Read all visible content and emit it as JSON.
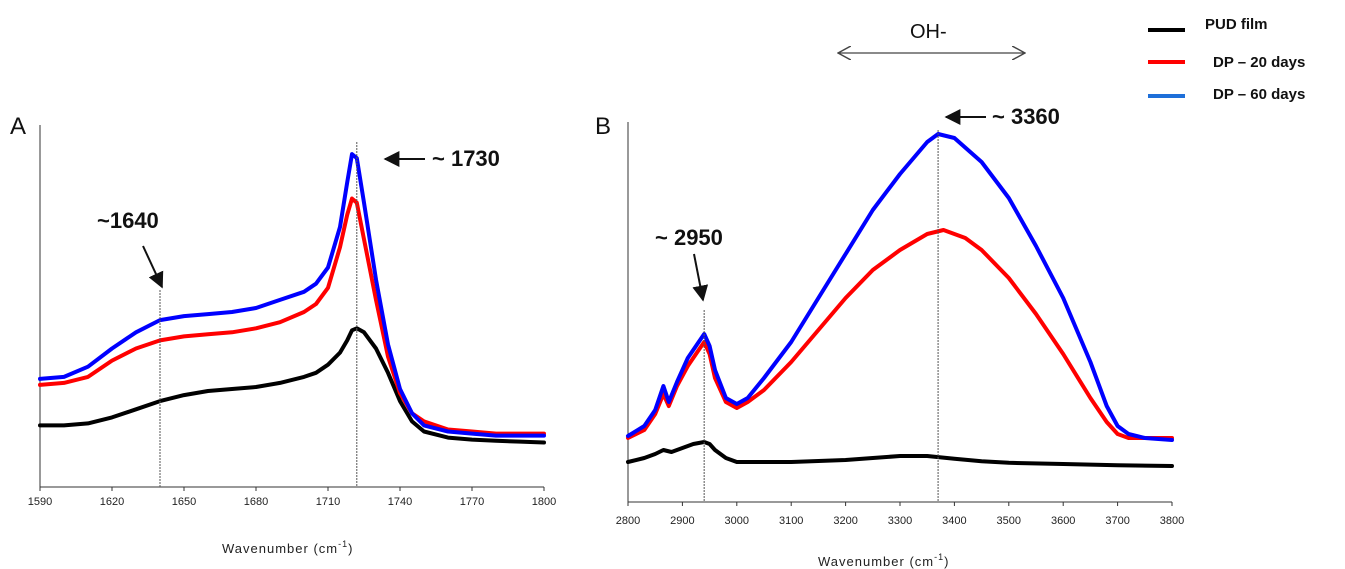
{
  "legend": [
    {
      "label": "PUD film",
      "color": "#000000"
    },
    {
      "label": "DP – 20 days",
      "color": "#ff0000"
    },
    {
      "label": "DP – 60 days",
      "color": "#0000ff"
    }
  ],
  "oh_label": "OH-",
  "chart_data": [
    {
      "type": "line",
      "panel": "A",
      "xlabel_main": "Wavenumber (cm",
      "xlabel_sup": "-1",
      "xlabel_close": ")",
      "xlim": [
        1590,
        1800
      ],
      "xticks": [
        "1590",
        "1620",
        "1650",
        "1680",
        "1710",
        "1740",
        "1770",
        "1800"
      ],
      "y_axis": "no tick labels",
      "annotations": [
        {
          "text": "~1640",
          "x": 1640
        },
        {
          "text": "~ 1730",
          "x": 1722
        }
      ],
      "series": [
        {
          "name": "PUD film",
          "color": "#000000",
          "x": [
            1590,
            1600,
            1610,
            1620,
            1630,
            1640,
            1650,
            1660,
            1670,
            1680,
            1690,
            1700,
            1705,
            1710,
            1715,
            1718,
            1720,
            1722,
            1725,
            1730,
            1735,
            1740,
            1745,
            1750,
            1760,
            1770,
            1780,
            1790,
            1800
          ],
          "y": [
            0.11,
            0.11,
            0.115,
            0.13,
            0.15,
            0.17,
            0.185,
            0.195,
            0.2,
            0.205,
            0.215,
            0.23,
            0.24,
            0.26,
            0.29,
            0.32,
            0.345,
            0.35,
            0.34,
            0.3,
            0.24,
            0.17,
            0.12,
            0.095,
            0.08,
            0.075,
            0.072,
            0.07,
            0.068
          ]
        },
        {
          "name": "DP – 20 days",
          "color": "#ff0000",
          "x": [
            1590,
            1600,
            1610,
            1620,
            1630,
            1640,
            1650,
            1660,
            1670,
            1680,
            1690,
            1700,
            1705,
            1710,
            1715,
            1718,
            1720,
            1722,
            1725,
            1730,
            1735,
            1740,
            1745,
            1750,
            1760,
            1770,
            1780,
            1790,
            1800
          ],
          "y": [
            0.21,
            0.215,
            0.23,
            0.27,
            0.3,
            0.32,
            0.33,
            0.335,
            0.34,
            0.35,
            0.365,
            0.39,
            0.41,
            0.45,
            0.55,
            0.63,
            0.67,
            0.66,
            0.57,
            0.42,
            0.28,
            0.19,
            0.14,
            0.12,
            0.1,
            0.095,
            0.09,
            0.09,
            0.09
          ]
        },
        {
          "name": "DP – 60 days",
          "color": "#0000ff",
          "x": [
            1590,
            1600,
            1610,
            1620,
            1630,
            1640,
            1650,
            1660,
            1670,
            1680,
            1690,
            1700,
            1705,
            1710,
            1715,
            1718,
            1720,
            1722,
            1725,
            1730,
            1735,
            1740,
            1745,
            1750,
            1760,
            1770,
            1780,
            1790,
            1800
          ],
          "y": [
            0.225,
            0.23,
            0.255,
            0.3,
            0.34,
            0.37,
            0.38,
            0.385,
            0.39,
            0.4,
            0.42,
            0.44,
            0.46,
            0.5,
            0.6,
            0.71,
            0.78,
            0.77,
            0.66,
            0.47,
            0.31,
            0.2,
            0.14,
            0.11,
            0.095,
            0.09,
            0.085,
            0.085,
            0.085
          ]
        }
      ]
    },
    {
      "type": "line",
      "panel": "B",
      "xlabel_main": "Wavenumber (cm",
      "xlabel_sup": "-1",
      "xlabel_close": ")",
      "xlim": [
        2800,
        3800
      ],
      "xticks": [
        "2800",
        "2900",
        "3000",
        "3100",
        "3200",
        "3300",
        "3400",
        "3500",
        "3600",
        "3700",
        "3800"
      ],
      "y_axis": "no tick labels",
      "annotations": [
        {
          "text": "~ 2950",
          "x": 2940
        },
        {
          "text": "~ 3360",
          "x": 3370
        }
      ],
      "series": [
        {
          "name": "PUD film",
          "color": "#000000",
          "x": [
            2800,
            2830,
            2850,
            2865,
            2880,
            2900,
            2920,
            2940,
            2950,
            2960,
            2980,
            3000,
            3050,
            3100,
            3200,
            3250,
            3300,
            3350,
            3400,
            3450,
            3500,
            3600,
            3700,
            3800
          ],
          "y": [
            0.01,
            0.02,
            0.03,
            0.04,
            0.035,
            0.045,
            0.055,
            0.06,
            0.055,
            0.04,
            0.02,
            0.01,
            0.01,
            0.01,
            0.015,
            0.02,
            0.025,
            0.025,
            0.018,
            0.012,
            0.008,
            0.005,
            0.002,
            0.0
          ]
        },
        {
          "name": "DP – 20 days",
          "color": "#ff0000",
          "x": [
            2800,
            2830,
            2850,
            2865,
            2875,
            2890,
            2910,
            2930,
            2940,
            2950,
            2960,
            2980,
            3000,
            3020,
            3050,
            3100,
            3150,
            3200,
            3250,
            3300,
            3350,
            3380,
            3420,
            3450,
            3500,
            3550,
            3600,
            3650,
            3680,
            3700,
            3720,
            3750,
            3800
          ],
          "y": [
            0.07,
            0.09,
            0.13,
            0.18,
            0.15,
            0.2,
            0.25,
            0.29,
            0.31,
            0.28,
            0.22,
            0.16,
            0.145,
            0.16,
            0.19,
            0.26,
            0.34,
            0.42,
            0.49,
            0.54,
            0.58,
            0.59,
            0.57,
            0.54,
            0.47,
            0.38,
            0.28,
            0.17,
            0.11,
            0.08,
            0.07,
            0.07,
            0.07
          ]
        },
        {
          "name": "DP – 60 days",
          "color": "#0000ff",
          "x": [
            2800,
            2830,
            2850,
            2865,
            2875,
            2890,
            2910,
            2930,
            2940,
            2950,
            2960,
            2980,
            3000,
            3020,
            3050,
            3100,
            3150,
            3200,
            3250,
            3300,
            3350,
            3370,
            3400,
            3450,
            3500,
            3550,
            3600,
            3650,
            3680,
            3700,
            3720,
            3750,
            3800
          ],
          "y": [
            0.075,
            0.1,
            0.14,
            0.2,
            0.16,
            0.21,
            0.27,
            0.31,
            0.33,
            0.3,
            0.24,
            0.17,
            0.155,
            0.17,
            0.22,
            0.31,
            0.42,
            0.53,
            0.64,
            0.73,
            0.81,
            0.83,
            0.82,
            0.76,
            0.67,
            0.55,
            0.42,
            0.26,
            0.15,
            0.1,
            0.08,
            0.07,
            0.065
          ]
        }
      ]
    }
  ]
}
